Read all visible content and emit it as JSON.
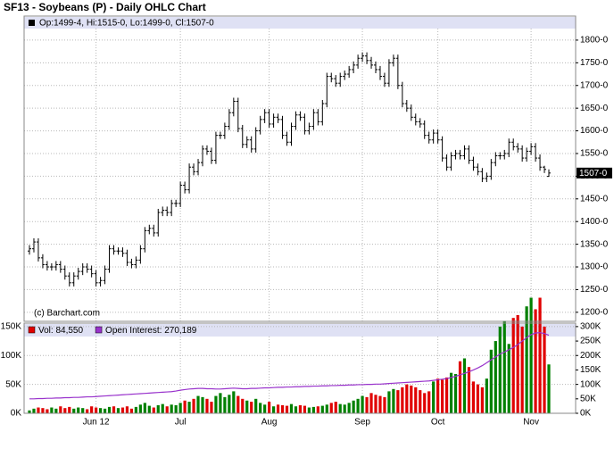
{
  "chart_data": [
    {
      "type": "ohlc",
      "title": "SF13 - Soybeans (P) - Daily OHLC Chart",
      "legend_text": "Op:1499-4, Hi:1515-0, Lo:1499-0, Cl:1507-0",
      "last_label": "1507-0",
      "watermark": "(c) Barchart.com",
      "color": "#000000",
      "grid": true,
      "ylim": [
        1180,
        1853
      ],
      "yticks": [
        {
          "value": 1200,
          "label": "1200-0"
        },
        {
          "value": 1250,
          "label": "1250-0"
        },
        {
          "value": 1300,
          "label": "1300-0"
        },
        {
          "value": 1350,
          "label": "1350-0"
        },
        {
          "value": 1400,
          "label": "1400-0"
        },
        {
          "value": 1450,
          "label": "1450-0"
        },
        {
          "value": 1500,
          "label": "1500-0"
        },
        {
          "value": 1550,
          "label": "1550-0"
        },
        {
          "value": 1600,
          "label": "1600-0"
        },
        {
          "value": 1650,
          "label": "1650-0"
        },
        {
          "value": 1700,
          "label": "1700-0"
        },
        {
          "value": 1750,
          "label": "1750-0"
        },
        {
          "value": 1800,
          "label": "1800-0"
        }
      ],
      "open": [
        1335,
        1340,
        1355,
        1320,
        1305,
        1300,
        1300,
        1305,
        1295,
        1280,
        1265,
        1280,
        1290,
        1300,
        1295,
        1285,
        1265,
        1270,
        1295,
        1340,
        1335,
        1335,
        1330,
        1310,
        1305,
        1315,
        1340,
        1380,
        1385,
        1375,
        1420,
        1425,
        1420,
        1440,
        1440,
        1480,
        1470,
        1520,
        1510,
        1530,
        1560,
        1555,
        1535,
        1590,
        1590,
        1610,
        1640,
        1665,
        1605,
        1570,
        1580,
        1560,
        1600,
        1625,
        1640,
        1615,
        1630,
        1625,
        1590,
        1575,
        1610,
        1635,
        1630,
        1600,
        1610,
        1640,
        1620,
        1660,
        1720,
        1715,
        1705,
        1720,
        1725,
        1735,
        1745,
        1760,
        1765,
        1755,
        1745,
        1735,
        1720,
        1705,
        1750,
        1760,
        1700,
        1660,
        1650,
        1630,
        1620,
        1615,
        1590,
        1580,
        1595,
        1580,
        1540,
        1520,
        1545,
        1550,
        1545,
        1560,
        1535,
        1520,
        1510,
        1495,
        1500,
        1530,
        1545,
        1545,
        1550,
        1575,
        1565,
        1560,
        1540,
        1555,
        1565,
        1540,
        1520,
        1499.5
      ],
      "high": [
        1348,
        1363,
        1363,
        1328,
        1313,
        1308,
        1313,
        1313,
        1303,
        1288,
        1288,
        1298,
        1308,
        1308,
        1303,
        1293,
        1278,
        1303,
        1348,
        1348,
        1343,
        1343,
        1338,
        1318,
        1323,
        1348,
        1388,
        1393,
        1393,
        1428,
        1433,
        1433,
        1448,
        1448,
        1488,
        1488,
        1528,
        1528,
        1538,
        1568,
        1568,
        1563,
        1598,
        1598,
        1618,
        1648,
        1673,
        1673,
        1613,
        1588,
        1588,
        1608,
        1633,
        1648,
        1648,
        1638,
        1638,
        1633,
        1598,
        1618,
        1643,
        1643,
        1638,
        1618,
        1648,
        1648,
        1668,
        1728,
        1728,
        1723,
        1728,
        1733,
        1743,
        1753,
        1768,
        1773,
        1773,
        1763,
        1753,
        1743,
        1728,
        1758,
        1768,
        1768,
        1708,
        1668,
        1658,
        1638,
        1628,
        1623,
        1598,
        1603,
        1603,
        1588,
        1548,
        1553,
        1558,
        1558,
        1568,
        1568,
        1543,
        1528,
        1518,
        1508,
        1538,
        1553,
        1553,
        1558,
        1583,
        1583,
        1573,
        1568,
        1563,
        1573,
        1573,
        1548,
        1523,
        1515
      ],
      "low": [
        1327,
        1332,
        1312,
        1297,
        1292,
        1292,
        1292,
        1287,
        1272,
        1257,
        1257,
        1272,
        1282,
        1287,
        1277,
        1257,
        1257,
        1262,
        1287,
        1327,
        1327,
        1322,
        1302,
        1297,
        1297,
        1307,
        1332,
        1372,
        1367,
        1367,
        1412,
        1412,
        1412,
        1432,
        1432,
        1462,
        1462,
        1502,
        1502,
        1522,
        1547,
        1527,
        1527,
        1582,
        1582,
        1602,
        1632,
        1597,
        1562,
        1562,
        1552,
        1552,
        1592,
        1617,
        1607,
        1607,
        1617,
        1582,
        1567,
        1567,
        1602,
        1622,
        1592,
        1592,
        1602,
        1612,
        1612,
        1652,
        1707,
        1697,
        1697,
        1712,
        1717,
        1727,
        1737,
        1752,
        1747,
        1737,
        1727,
        1712,
        1697,
        1697,
        1742,
        1692,
        1652,
        1642,
        1622,
        1612,
        1607,
        1582,
        1572,
        1572,
        1572,
        1532,
        1512,
        1512,
        1537,
        1537,
        1537,
        1527,
        1512,
        1502,
        1487,
        1487,
        1492,
        1522,
        1537,
        1537,
        1542,
        1557,
        1552,
        1532,
        1532,
        1547,
        1532,
        1512,
        1507,
        1499
      ],
      "close": [
        1340,
        1355,
        1320,
        1305,
        1300,
        1300,
        1305,
        1295,
        1280,
        1265,
        1280,
        1290,
        1300,
        1295,
        1285,
        1265,
        1270,
        1295,
        1340,
        1335,
        1335,
        1330,
        1310,
        1305,
        1315,
        1340,
        1380,
        1385,
        1375,
        1420,
        1425,
        1420,
        1440,
        1440,
        1480,
        1470,
        1520,
        1510,
        1530,
        1560,
        1555,
        1535,
        1590,
        1590,
        1610,
        1640,
        1665,
        1605,
        1570,
        1580,
        1560,
        1600,
        1625,
        1640,
        1615,
        1630,
        1625,
        1590,
        1575,
        1610,
        1635,
        1630,
        1600,
        1610,
        1640,
        1620,
        1660,
        1720,
        1715,
        1705,
        1720,
        1725,
        1735,
        1745,
        1760,
        1765,
        1755,
        1745,
        1735,
        1720,
        1705,
        1750,
        1760,
        1700,
        1660,
        1650,
        1630,
        1620,
        1615,
        1590,
        1580,
        1595,
        1580,
        1540,
        1520,
        1545,
        1550,
        1545,
        1560,
        1535,
        1520,
        1510,
        1495,
        1500,
        1530,
        1545,
        1545,
        1550,
        1575,
        1565,
        1560,
        1540,
        1555,
        1565,
        1540,
        1520,
        1515,
        1507
      ]
    },
    {
      "type": "bar",
      "categories": [
        null,
        null,
        null,
        null,
        null,
        null,
        null,
        null,
        null,
        null,
        null,
        null,
        null,
        null,
        null,
        "Jun 12",
        null,
        null,
        null,
        null,
        null,
        null,
        null,
        null,
        null,
        null,
        null,
        null,
        null,
        null,
        null,
        null,
        null,
        null,
        "Jul",
        null,
        null,
        null,
        null,
        null,
        null,
        null,
        null,
        null,
        null,
        null,
        null,
        null,
        null,
        null,
        null,
        null,
        null,
        null,
        "Aug",
        null,
        null,
        null,
        null,
        null,
        null,
        null,
        null,
        null,
        null,
        null,
        null,
        null,
        null,
        null,
        null,
        null,
        null,
        null,
        null,
        "Sep",
        null,
        null,
        null,
        null,
        null,
        null,
        null,
        null,
        null,
        null,
        null,
        null,
        null,
        null,
        null,
        null,
        "Oct",
        null,
        null,
        null,
        null,
        null,
        null,
        null,
        null,
        null,
        null,
        null,
        null,
        null,
        null,
        null,
        null,
        null,
        null,
        null,
        null,
        "Nov",
        null,
        null,
        null,
        null
      ],
      "grid": true,
      "ylim": [
        0,
        156000
      ],
      "yticks": [
        {
          "value": 0,
          "label": "0K"
        },
        {
          "value": 50000,
          "label": "50K"
        },
        {
          "value": 100000,
          "label": "100K"
        },
        {
          "value": 150000,
          "label": "150K"
        }
      ],
      "y2lim": [
        0,
        312000
      ],
      "y2ticks": [
        {
          "value": 0,
          "label": "0K"
        },
        {
          "value": 50000,
          "label": "50K"
        },
        {
          "value": 100000,
          "label": "100K"
        },
        {
          "value": 150000,
          "label": "150K"
        },
        {
          "value": 200000,
          "label": "200K"
        },
        {
          "value": 250000,
          "label": "250K"
        },
        {
          "value": 300000,
          "label": "300K"
        }
      ],
      "series": [
        {
          "name": "Vol: 84,550",
          "color": "#e00000",
          "up_color": "#008000",
          "values": [
            5000,
            8000,
            10000,
            9000,
            7000,
            10000,
            8000,
            12000,
            9000,
            11000,
            8000,
            10000,
            9000,
            7000,
            12000,
            10000,
            9000,
            8000,
            11000,
            12000,
            9000,
            10000,
            12000,
            8000,
            11000,
            15000,
            18000,
            13000,
            10000,
            14000,
            16000,
            12000,
            15000,
            14000,
            18000,
            22000,
            20000,
            25000,
            30000,
            28000,
            25000,
            20000,
            30000,
            35000,
            28000,
            32000,
            38000,
            30000,
            25000,
            22000,
            20000,
            25000,
            18000,
            15000,
            20000,
            12000,
            15000,
            14000,
            13000,
            16000,
            12000,
            14000,
            13000,
            10000,
            11000,
            12000,
            13000,
            15000,
            18000,
            20000,
            16000,
            15000,
            18000,
            22000,
            25000,
            30000,
            28000,
            35000,
            32000,
            30000,
            28000,
            38000,
            42000,
            40000,
            45000,
            50000,
            48000,
            45000,
            40000,
            35000,
            38000,
            55000,
            60000,
            58000,
            62000,
            70000,
            68000,
            90000,
            95000,
            80000,
            55000,
            50000,
            45000,
            60000,
            110000,
            125000,
            150000,
            160000,
            120000,
            165000,
            170000,
            150000,
            185000,
            200000,
            180000,
            200000,
            150000,
            84550
          ]
        },
        {
          "name": "Open Interest: 270,189",
          "type": "line",
          "axis": "y2",
          "color": "#9933cc",
          "values": [
            50000,
            50000,
            51000,
            51000,
            52000,
            52000,
            53000,
            53000,
            54000,
            54000,
            55000,
            55000,
            56000,
            57000,
            57000,
            58000,
            59000,
            60000,
            61000,
            62000,
            63000,
            64000,
            65000,
            66000,
            67000,
            68000,
            69000,
            70000,
            71000,
            72000,
            73000,
            74000,
            75000,
            77000,
            80000,
            82000,
            84000,
            85000,
            86000,
            86000,
            85000,
            85000,
            84000,
            84000,
            85000,
            86000,
            87000,
            86000,
            85000,
            85000,
            86000,
            86000,
            87000,
            88000,
            88000,
            89000,
            90000,
            90000,
            91000,
            91000,
            92000,
            92000,
            93000,
            93000,
            94000,
            94000,
            95000,
            95000,
            96000,
            96000,
            97000,
            97000,
            98000,
            98000,
            99000,
            99000,
            100000,
            100000,
            101000,
            101000,
            102000,
            103000,
            104000,
            105000,
            106000,
            107000,
            108000,
            109000,
            110000,
            111000,
            112000,
            114000,
            116000,
            118000,
            120000,
            124000,
            128000,
            133000,
            138000,
            144000,
            150000,
            157000,
            165000,
            175000,
            185000,
            195000,
            205000,
            212000,
            220000,
            228000,
            238000,
            250000,
            262000,
            272000,
            278000,
            279000,
            276000,
            270189
          ]
        }
      ]
    }
  ]
}
